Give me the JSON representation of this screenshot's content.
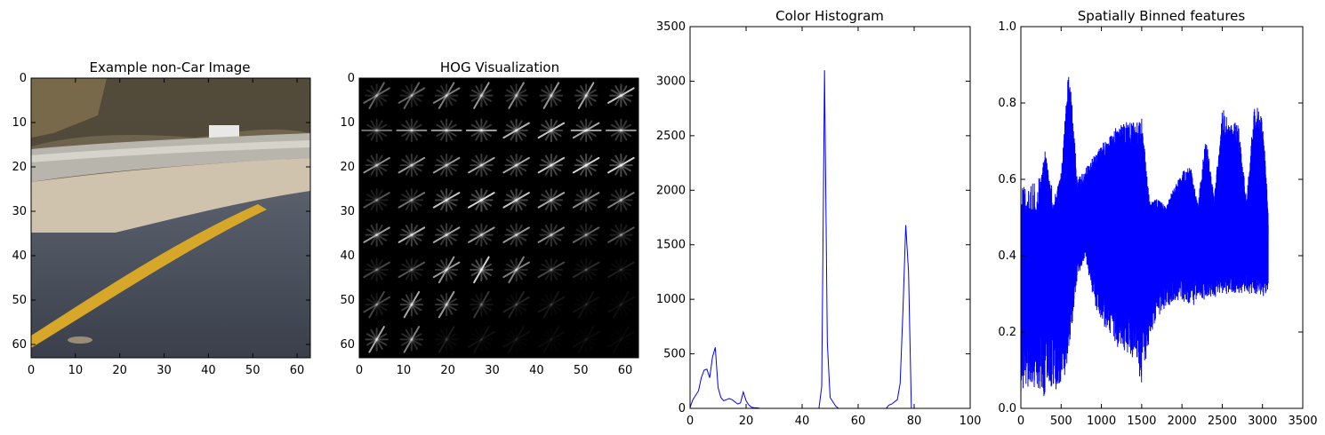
{
  "chart_data": [
    {
      "type": "image",
      "title": "Example non-Car Image",
      "xticks": [
        "0",
        "10",
        "20",
        "30",
        "40",
        "50",
        "60"
      ],
      "yticks": [
        "0",
        "10",
        "20",
        "30",
        "40",
        "50",
        "60"
      ],
      "xlim": [
        0,
        63
      ],
      "ylim": [
        63,
        0
      ]
    },
    {
      "type": "heatmap",
      "title": "HOG Visualization",
      "xticks": [
        "0",
        "10",
        "20",
        "30",
        "40",
        "50",
        "60"
      ],
      "yticks": [
        "0",
        "10",
        "20",
        "30",
        "40",
        "50",
        "60"
      ],
      "xlim": [
        0,
        63
      ],
      "ylim": [
        63,
        0
      ]
    },
    {
      "type": "line",
      "title": "Color Histogram",
      "xlim": [
        0,
        100
      ],
      "ylim": [
        0,
        3500
      ],
      "xticks": [
        "0",
        "20",
        "40",
        "60",
        "80",
        "100"
      ],
      "yticks": [
        "0",
        "500",
        "1000",
        "1500",
        "2000",
        "2500",
        "3000",
        "3500"
      ],
      "series": [
        {
          "color": "#0000ff",
          "x": [
            0,
            1,
            2,
            3,
            4,
            5,
            6,
            7,
            8,
            9,
            10,
            11,
            12,
            13,
            14,
            15,
            16,
            17,
            18,
            19,
            20,
            21,
            22,
            23,
            24,
            25,
            26,
            27,
            28,
            29,
            30,
            31,
            32,
            33,
            34,
            35,
            36,
            37,
            38,
            39,
            40,
            41,
            42,
            43,
            44,
            45,
            46,
            47,
            48,
            49,
            50,
            51,
            52,
            53,
            54,
            55,
            56,
            57,
            58,
            59,
            60,
            61,
            62,
            63,
            64,
            65,
            66,
            67,
            68,
            69,
            70,
            71,
            72,
            73,
            74,
            75,
            76,
            77,
            78,
            79,
            80,
            81,
            82,
            83,
            84,
            85,
            86,
            87,
            88,
            89,
            90,
            91,
            92,
            93,
            94,
            95
          ],
          "y": [
            10,
            80,
            120,
            160,
            280,
            350,
            360,
            280,
            470,
            560,
            190,
            100,
            70,
            80,
            90,
            80,
            60,
            40,
            50,
            150,
            70,
            30,
            10,
            5,
            5,
            0,
            0,
            0,
            0,
            0,
            0,
            0,
            0,
            0,
            0,
            0,
            0,
            0,
            0,
            0,
            0,
            0,
            0,
            0,
            0,
            0,
            0,
            200,
            3100,
            600,
            100,
            60,
            20,
            0,
            0,
            0,
            0,
            0,
            0,
            0,
            0,
            0,
            0,
            0,
            0,
            0,
            0,
            0,
            0,
            0,
            0,
            30,
            40,
            60,
            80,
            230,
            900,
            1680,
            1250,
            0,
            0,
            0,
            0,
            0,
            0,
            0,
            0,
            0,
            0,
            0,
            0,
            0,
            0,
            0,
            0,
            0
          ]
        }
      ]
    },
    {
      "type": "line",
      "title": "Spatially Binned features",
      "xlim": [
        0,
        3500
      ],
      "ylim": [
        0.0,
        1.0
      ],
      "xticks": [
        "0",
        "500",
        "1000",
        "1500",
        "2000",
        "2500",
        "3000",
        "3500"
      ],
      "yticks": [
        "0.0",
        "0.2",
        "0.4",
        "0.6",
        "0.8",
        "1.0"
      ],
      "series": [
        {
          "color": "#0000ff",
          "n_points": 3072,
          "envelope_x": [
            0,
            100,
            200,
            300,
            400,
            500,
            600,
            700,
            800,
            900,
            1000,
            1100,
            1200,
            1300,
            1400,
            1500,
            1600,
            1700,
            1800,
            1900,
            2000,
            2100,
            2200,
            2300,
            2400,
            2500,
            2600,
            2700,
            2800,
            2900,
            3000,
            3072
          ],
          "envelope_max": [
            0.54,
            0.53,
            0.52,
            0.68,
            0.53,
            0.62,
            0.91,
            0.6,
            0.63,
            0.66,
            0.69,
            0.72,
            0.74,
            0.75,
            0.75,
            0.76,
            0.54,
            0.55,
            0.53,
            0.58,
            0.62,
            0.64,
            0.54,
            0.72,
            0.55,
            0.79,
            0.75,
            0.75,
            0.55,
            0.8,
            0.77,
            0.52
          ],
          "envelope_min": [
            0.03,
            0.06,
            0.05,
            0.02,
            0.06,
            0.03,
            0.15,
            0.34,
            0.4,
            0.28,
            0.22,
            0.2,
            0.16,
            0.14,
            0.13,
            0.06,
            0.18,
            0.24,
            0.26,
            0.28,
            0.28,
            0.27,
            0.27,
            0.29,
            0.29,
            0.3,
            0.3,
            0.3,
            0.3,
            0.3,
            0.29,
            0.29
          ]
        }
      ]
    }
  ]
}
